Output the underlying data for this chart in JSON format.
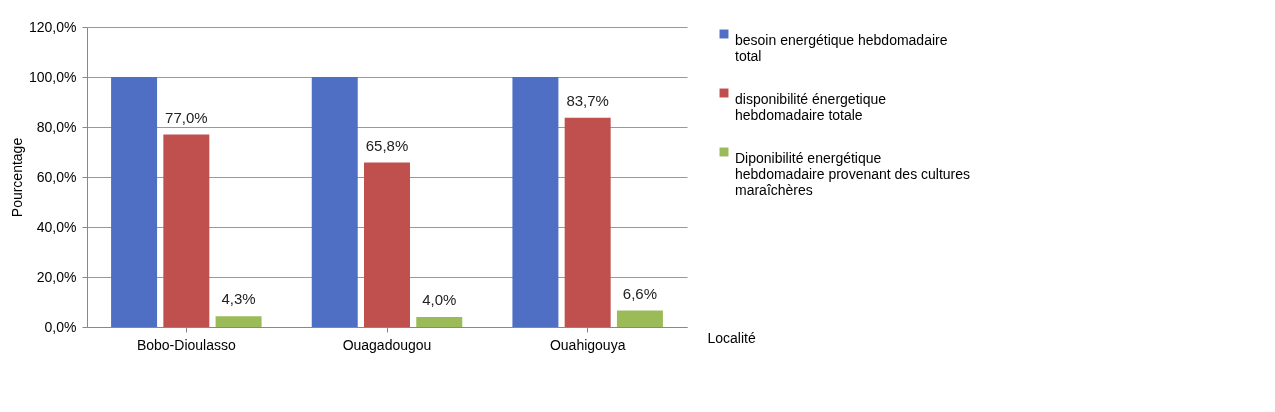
{
  "chart_data": {
    "type": "bar",
    "xlabel": "Localité",
    "ylabel": "Pourcentage",
    "categories": [
      "Bobo-Dioulasso",
      "Ouagadougou",
      "Ouahigouya"
    ],
    "series": [
      {
        "name": "besoin energétique hebdomadaire total",
        "color": "#4f6fc4",
        "values": [
          100,
          100,
          100
        ]
      },
      {
        "name": "disponibilité énergetique hebdomadaire totale",
        "color": "#c0504d",
        "values": [
          77.0,
          65.8,
          83.7
        ],
        "value_labels": [
          "77,0%",
          "65,8%",
          "83,7%"
        ]
      },
      {
        "name": "Diponibilité energétique hebdomadaire provenant des cultures maraîchères",
        "color": "#9bbb59",
        "values": [
          4.3,
          4.0,
          6.6
        ],
        "value_labels": [
          "4,3%",
          "4,0%",
          "6,6%"
        ]
      }
    ],
    "ylim": [
      0,
      120
    ],
    "yticks": [
      {
        "value": 0,
        "label": "0,0%"
      },
      {
        "value": 20,
        "label": "20,0%"
      },
      {
        "value": 40,
        "label": "40,0%"
      },
      {
        "value": 60,
        "label": "60,0%"
      },
      {
        "value": 80,
        "label": "80,0%"
      },
      {
        "value": 100,
        "label": "100,0%"
      },
      {
        "value": 120,
        "label": "120,0%"
      }
    ],
    "grid": "y",
    "legend": "right"
  }
}
